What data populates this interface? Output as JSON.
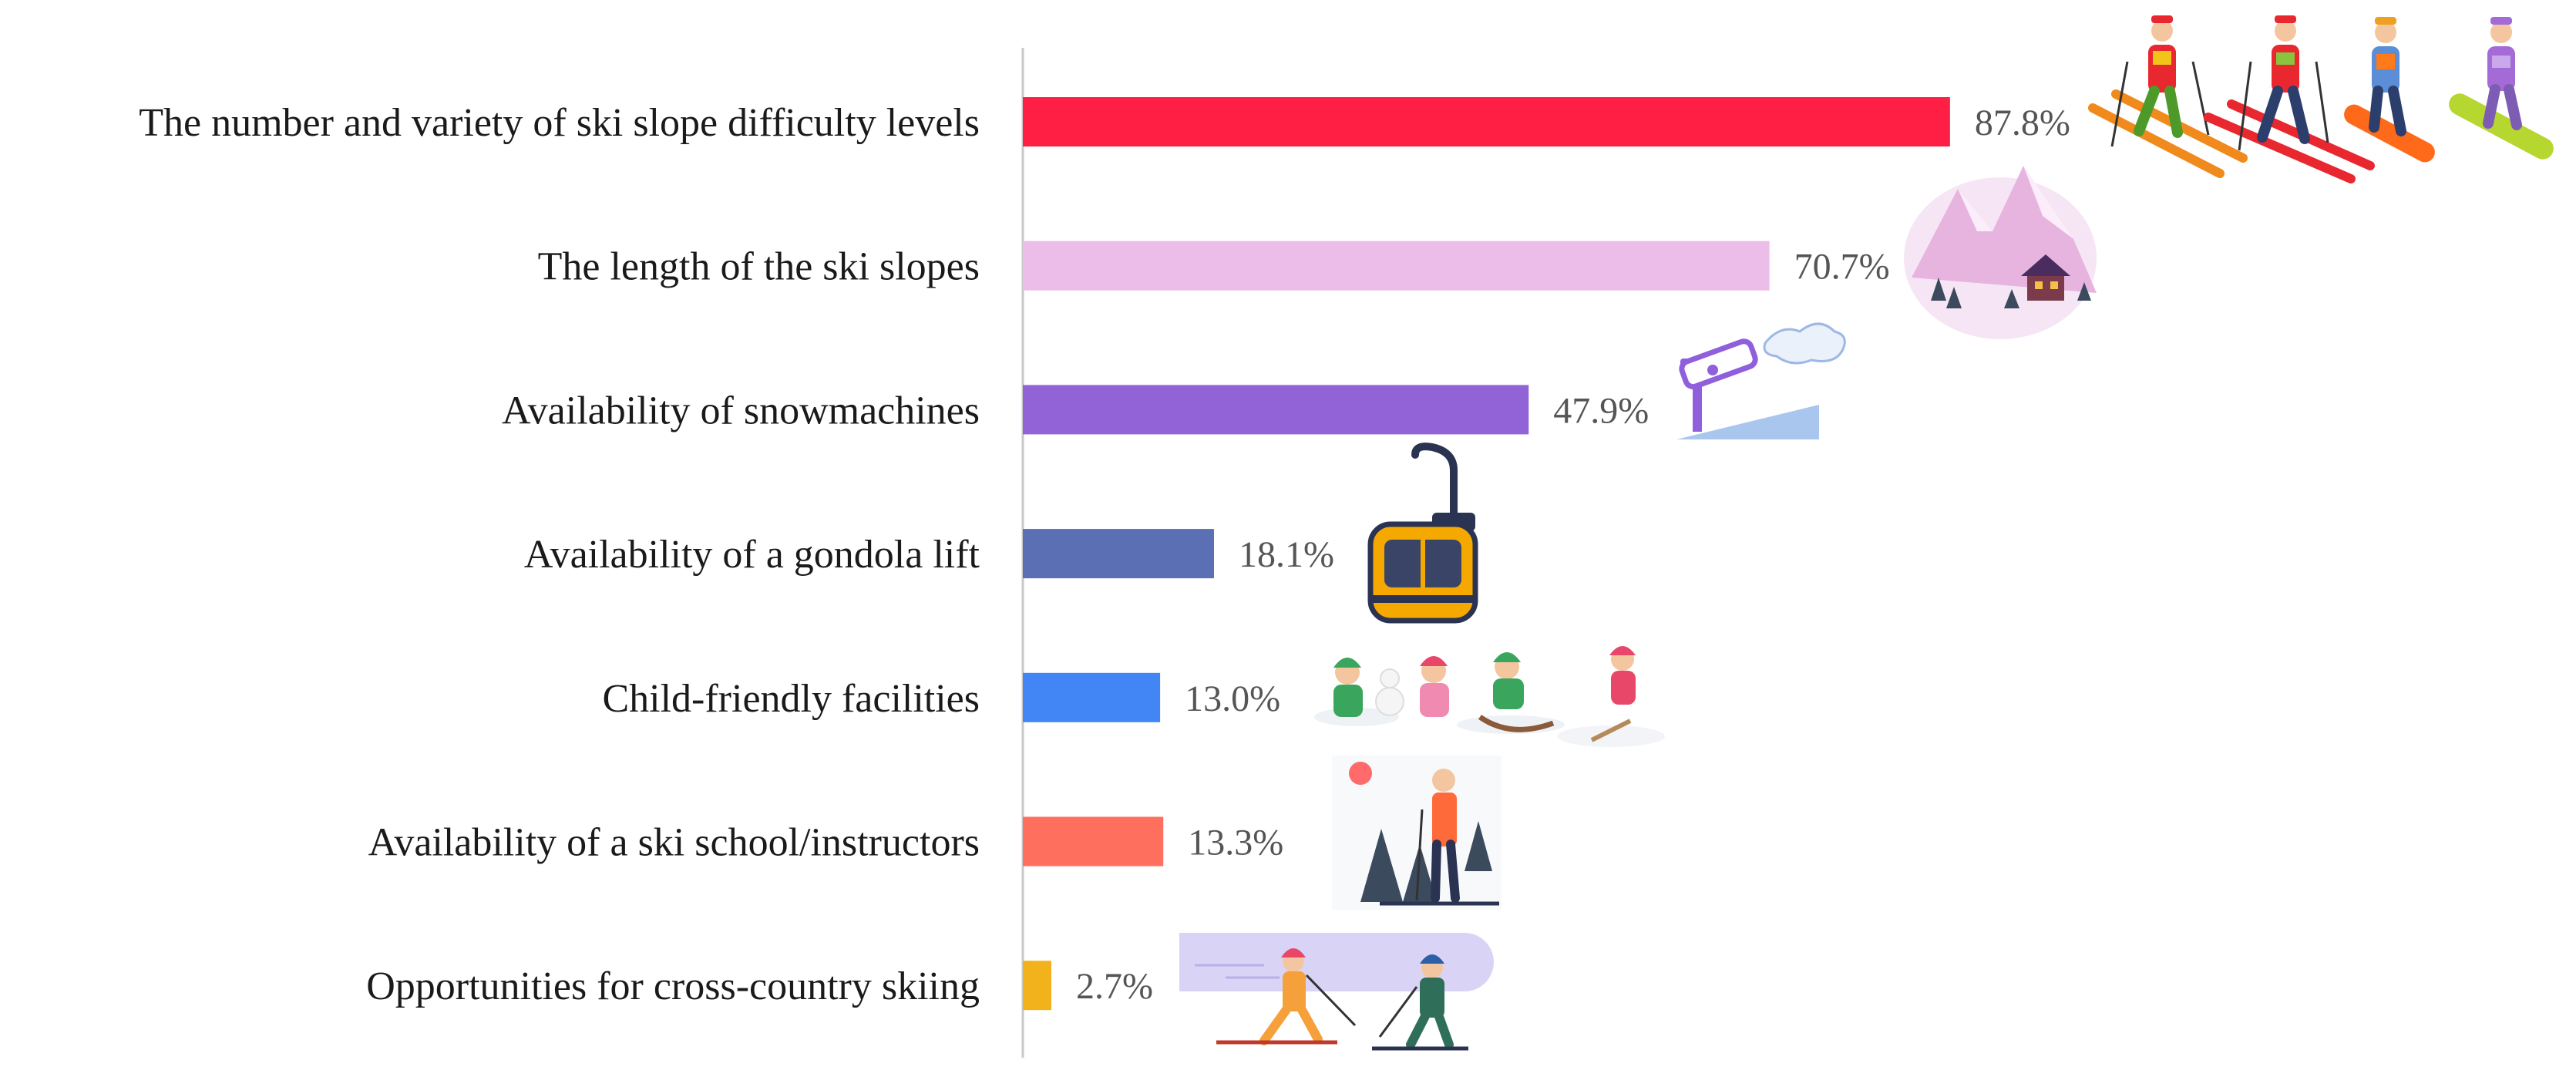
{
  "chart_data": {
    "type": "bar",
    "orientation": "horizontal",
    "categories": [
      "The number and variety of ski slope difficulty levels",
      "The length of the ski slopes",
      "Availability of snowmachines",
      "Availability of a gondola lift",
      "Child-friendly facilities",
      "Availability of a ski school/instructors",
      "Opportunities for cross-country skiing"
    ],
    "values": [
      87.8,
      70.7,
      47.9,
      18.1,
      13.0,
      13.3,
      2.7
    ],
    "value_labels": [
      "87.8%",
      "70.7%",
      "47.9%",
      "18.1%",
      "13.0%",
      "13.3%",
      "2.7%"
    ],
    "colors": [
      "#ff1f44",
      "#ebbde8",
      "#9263d6",
      "#5b6fb5",
      "#4285f4",
      "#ff6f5e",
      "#f2b21c"
    ],
    "unit": "%",
    "xlim": [
      0,
      100
    ],
    "grid": false,
    "title": "",
    "xlabel": "",
    "ylabel": ""
  },
  "decorations": {
    "icons": [
      "skiers-and-snowboarders-icon",
      "snowy-mountain-chalet-icon",
      "snow-machine-icon",
      "gondola-cabin-icon",
      "children-playing-in-snow-icon",
      "ski-instructor-icon",
      "cross-country-skiers-icon"
    ]
  }
}
